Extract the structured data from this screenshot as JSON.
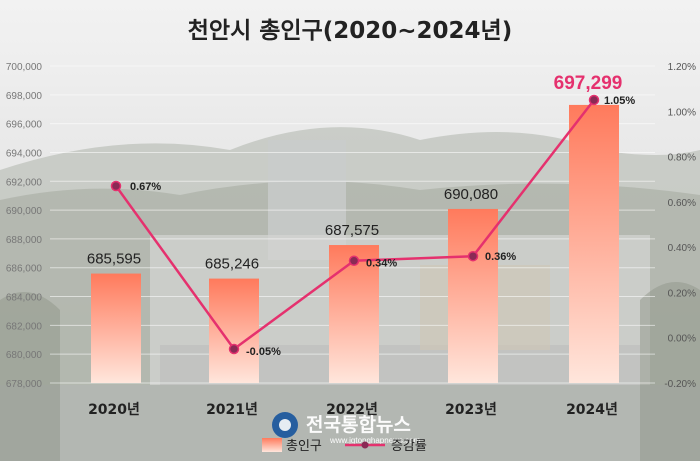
{
  "chart_data": {
    "type": "bar",
    "title": "천안시 총인구(2020~2024년)",
    "categories": [
      "2020년",
      "2021년",
      "2022년",
      "2023년",
      "2024년"
    ],
    "series": [
      {
        "name": "총인구",
        "type": "bar",
        "axis": "left",
        "values": [
          685595,
          685246,
          687575,
          690080,
          697299
        ],
        "labels": [
          "685,595",
          "685,246",
          "687,575",
          "690,080",
          "697,299"
        ]
      },
      {
        "name": "증감률",
        "type": "line",
        "axis": "right",
        "values": [
          0.67,
          -0.05,
          0.34,
          0.36,
          1.05
        ],
        "labels": [
          "0.67%",
          "-0.05%",
          "0.34%",
          "0.36%",
          "1.05%"
        ]
      }
    ],
    "left_axis": {
      "ylim": [
        678000,
        700000
      ],
      "ticks": [
        678000,
        680000,
        682000,
        684000,
        686000,
        688000,
        690000,
        692000,
        694000,
        696000,
        698000,
        700000
      ],
      "tick_labels": [
        "678,000",
        "680,000",
        "682,000",
        "684,000",
        "686,000",
        "688,000",
        "690,000",
        "692,000",
        "694,000",
        "696,000",
        "698,000",
        "700,000"
      ]
    },
    "right_axis": {
      "ylim": [
        -0.2,
        1.2
      ],
      "ticks": [
        -0.2,
        0,
        0.2,
        0.4,
        0.6,
        0.8,
        1.0,
        1.2
      ],
      "tick_labels": [
        "-0.20%",
        "0.00%",
        "0.20%",
        "0.40%",
        "0.60%",
        "0.80%",
        "1.00%",
        "1.20%"
      ]
    },
    "highlight_index": 4,
    "grid": true,
    "legend": "bottom-center"
  },
  "watermark": {
    "name": "전국통합뉴스",
    "url": "www.jgtonghapnews.com"
  },
  "colors": {
    "bar_top": "#ff7a5c",
    "bar_bottom": "#ffe6dc",
    "line": "#e5316e",
    "highlight": "#e5316e"
  }
}
